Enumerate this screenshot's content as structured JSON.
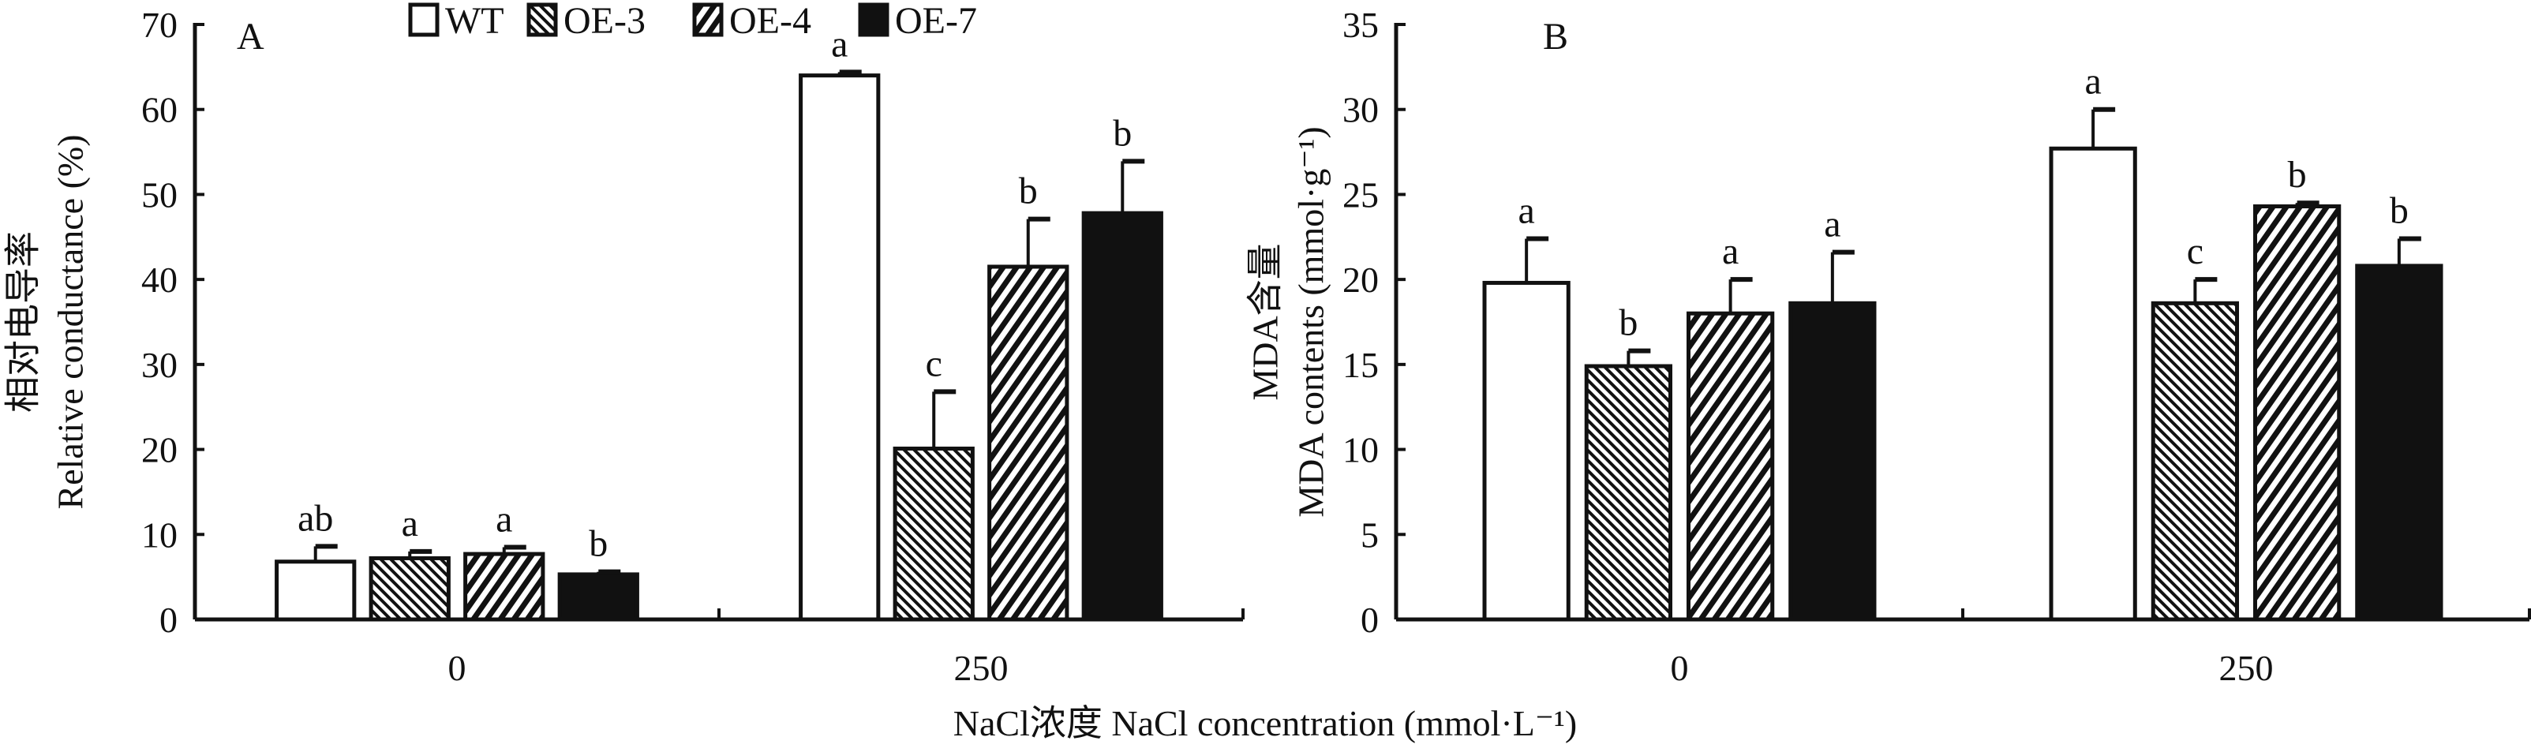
{
  "legend": {
    "items": [
      {
        "label": "WT",
        "fill": "white"
      },
      {
        "label": "OE-3",
        "fill": "fine-hatch"
      },
      {
        "label": "OE-4",
        "fill": "bold-hatch"
      },
      {
        "label": "OE-7",
        "fill": "black"
      }
    ]
  },
  "xlabel": "NaCl浓度 NaCl concentration (mmol·L⁻¹)",
  "chart_data": [
    {
      "type": "bar",
      "panel": "A",
      "ylabel_cn": "相对电导率",
      "ylabel": "Relative conductance (%)",
      "categories": [
        "0",
        "250"
      ],
      "ylim": [
        0,
        70
      ],
      "yticks": [
        0,
        10,
        20,
        30,
        40,
        50,
        60,
        70
      ],
      "grid": false,
      "legend_position": "top",
      "series": [
        {
          "name": "WT",
          "values": [
            6.8,
            64.0
          ],
          "errors": [
            1.8,
            0.4
          ],
          "letters": [
            "ab",
            "a"
          ]
        },
        {
          "name": "OE-3",
          "values": [
            7.2,
            20.1
          ],
          "errors": [
            0.8,
            6.7
          ],
          "letters": [
            "a",
            "c"
          ]
        },
        {
          "name": "OE-4",
          "values": [
            7.7,
            41.5
          ],
          "errors": [
            0.8,
            5.6
          ],
          "letters": [
            "a",
            "b"
          ]
        },
        {
          "name": "OE-7",
          "values": [
            5.3,
            47.8
          ],
          "errors": [
            0.3,
            6.1
          ],
          "letters": [
            "b",
            "b"
          ]
        }
      ]
    },
    {
      "type": "bar",
      "panel": "B",
      "ylabel_cn": "MDA含量",
      "ylabel": "MDA contents (mmol·g⁻¹)",
      "categories": [
        "0",
        "250"
      ],
      "ylim": [
        0,
        35
      ],
      "yticks": [
        0,
        5,
        10,
        15,
        20,
        25,
        30,
        35
      ],
      "grid": false,
      "series": [
        {
          "name": "WT",
          "values": [
            19.8,
            27.7
          ],
          "errors": [
            2.6,
            2.3
          ],
          "letters": [
            "a",
            "a"
          ]
        },
        {
          "name": "OE-3",
          "values": [
            14.9,
            18.6
          ],
          "errors": [
            0.9,
            1.4
          ],
          "letters": [
            "b",
            "c"
          ]
        },
        {
          "name": "OE-4",
          "values": [
            18.0,
            24.3
          ],
          "errors": [
            2.0,
            0.2
          ],
          "letters": [
            "a",
            "b"
          ]
        },
        {
          "name": "OE-7",
          "values": [
            18.6,
            20.8
          ],
          "errors": [
            3.0,
            1.6
          ],
          "letters": [
            "a",
            "b"
          ]
        }
      ]
    }
  ],
  "colors": {
    "ink": "#111111",
    "background": "#ffffff"
  }
}
